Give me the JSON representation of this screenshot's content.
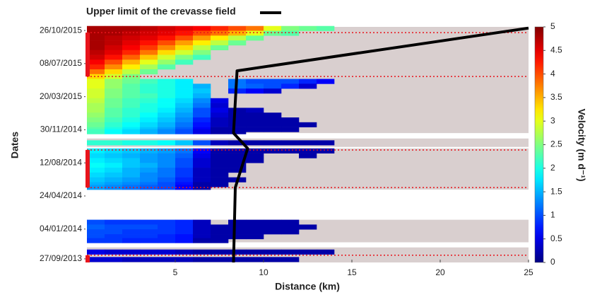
{
  "chart_data": {
    "type": "heatmap",
    "legend_label": "Upper limit of the crevasse field",
    "xlabel": "Distance (km)",
    "ylabel": "Dates",
    "colorbar_label": "Velocity (m d⁻¹)",
    "xlim": [
      0,
      25
    ],
    "xticks": [
      5,
      10,
      15,
      20,
      25
    ],
    "ylim": [
      "2013-09-15",
      "2015-11-07"
    ],
    "yticks": [
      {
        "value": "2015-10-26",
        "label": "26/10/2015"
      },
      {
        "value": "2015-07-08",
        "label": "08/07/2015"
      },
      {
        "value": "2015-03-20",
        "label": "20/03/2015"
      },
      {
        "value": "2014-11-30",
        "label": "30/11/2014"
      },
      {
        "value": "2014-08-12",
        "label": "12/08/2014"
      },
      {
        "value": "2014-04-24",
        "label": "24/04/2014"
      },
      {
        "value": "2014-01-04",
        "label": "04/01/2014"
      },
      {
        "value": "2013-09-27",
        "label": "27/09/2013"
      }
    ],
    "colormap": "jet",
    "clim": [
      0,
      5
    ],
    "cticks": [
      0,
      0.5,
      1,
      1.5,
      2,
      2.5,
      3,
      3.5,
      4,
      4.5,
      5
    ],
    "coverage_color": "#d9cfcf",
    "coverage": [
      [
        "2014-11-19",
        "2015-11-07"
      ],
      [
        "2014-10-04",
        "2014-11-01"
      ],
      [
        "2014-05-15",
        "2014-09-29"
      ],
      [
        "2013-11-21",
        "2014-02-04"
      ],
      [
        "2013-09-15",
        "2013-11-04"
      ]
    ],
    "highlight_color": "#e8141c",
    "highlights": [
      [
        "2015-05-26",
        "2015-10-19"
      ],
      [
        "2014-05-22",
        "2014-09-24"
      ],
      [
        "2013-09-15",
        "2013-10-09"
      ]
    ],
    "x_edges": [
      0,
      1,
      2,
      3,
      4,
      5,
      6,
      7,
      8,
      9,
      10,
      11,
      12,
      13,
      14
    ],
    "rows": [
      {
        "date": "2015-11-02",
        "values": [
          4.8,
          4.8,
          4.8,
          4.7,
          4.6,
          4.5,
          4.4,
          4.2,
          4.0,
          3.8,
          3.0,
          2.5,
          2.4,
          2.3
        ]
      },
      {
        "date": "2015-10-17",
        "values": [
          4.8,
          4.8,
          4.7,
          4.6,
          4.5,
          4.3,
          4.0,
          3.8,
          3.5,
          3.0,
          2.4,
          2.3,
          null,
          null
        ]
      },
      {
        "date": "2015-10-01",
        "values": [
          4.8,
          4.7,
          4.6,
          4.5,
          4.3,
          4.0,
          3.6,
          3.2,
          2.8,
          2.4,
          null,
          null,
          null,
          null
        ]
      },
      {
        "date": "2015-09-15",
        "values": [
          4.8,
          4.7,
          4.5,
          4.3,
          4.0,
          3.6,
          3.2,
          2.8,
          2.4,
          null,
          null,
          null,
          null,
          null
        ]
      },
      {
        "date": "2015-08-30",
        "values": [
          4.8,
          4.6,
          4.4,
          4.1,
          3.7,
          3.3,
          2.8,
          2.4,
          null,
          null,
          null,
          null,
          null,
          null
        ]
      },
      {
        "date": "2015-08-14",
        "values": [
          4.7,
          4.5,
          4.2,
          3.8,
          3.3,
          2.9,
          2.5,
          null,
          null,
          null,
          null,
          null,
          null,
          null
        ]
      },
      {
        "date": "2015-07-29",
        "values": [
          4.6,
          4.3,
          3.9,
          3.4,
          2.9,
          2.5,
          2.2,
          null,
          null,
          null,
          null,
          null,
          null,
          null
        ]
      },
      {
        "date": "2015-07-13",
        "values": [
          4.4,
          4.0,
          3.5,
          3.0,
          2.6,
          2.2,
          null,
          null,
          null,
          null,
          null,
          null,
          null,
          null
        ]
      },
      {
        "date": "2015-06-27",
        "values": [
          4.2,
          3.7,
          3.2,
          2.7,
          2.3,
          null,
          null,
          null,
          null,
          null,
          null,
          null,
          null,
          null
        ]
      },
      {
        "date": "2015-06-11",
        "values": [
          3.8,
          3.3,
          2.8,
          2.4,
          null,
          null,
          null,
          null,
          null,
          null,
          null,
          null,
          null,
          null
        ]
      },
      {
        "date": "2015-05-26",
        "values": [
          3.3,
          2.9,
          2.5,
          null,
          null,
          null,
          null,
          null,
          null,
          null,
          null,
          null,
          null,
          null
        ]
      },
      {
        "date": "2015-05-10",
        "values": [
          3.0,
          2.6,
          2.4,
          2.2,
          2.0,
          1.8,
          null,
          null,
          1.2,
          1.0,
          1.0,
          1.0,
          0.8,
          0.6
        ]
      },
      {
        "date": "2015-04-24",
        "values": [
          3.0,
          2.6,
          2.3,
          2.1,
          2.0,
          1.8,
          1.5,
          null,
          1.2,
          1.1,
          1.0,
          0.8,
          0.4,
          null
        ]
      },
      {
        "date": "2015-04-08",
        "values": [
          2.9,
          2.5,
          2.3,
          2.1,
          2.0,
          1.8,
          1.6,
          null,
          0.8,
          0.6,
          0.4,
          null,
          null,
          null
        ]
      },
      {
        "date": "2015-03-23",
        "values": [
          2.9,
          2.5,
          2.3,
          2.2,
          2.0,
          1.8,
          1.5,
          null,
          null,
          null,
          null,
          null,
          null,
          null
        ]
      },
      {
        "date": "2015-03-07",
        "values": [
          2.8,
          2.4,
          2.2,
          2.1,
          1.9,
          1.7,
          1.3,
          0.5,
          null,
          null,
          null,
          null,
          null,
          null
        ]
      },
      {
        "date": "2015-02-19",
        "values": [
          2.7,
          2.4,
          2.2,
          2.0,
          1.9,
          1.6,
          1.2,
          0.4,
          null,
          null,
          null,
          null,
          null,
          null
        ]
      },
      {
        "date": "2015-02-03",
        "values": [
          2.7,
          2.3,
          2.1,
          2.0,
          1.8,
          1.5,
          1.0,
          0.5,
          0.2,
          0.3,
          null,
          null,
          null,
          null
        ]
      },
      {
        "date": "2015-01-18",
        "values": [
          2.6,
          2.3,
          2.1,
          1.9,
          1.7,
          1.4,
          1.0,
          0.4,
          0.2,
          0.2,
          0.2,
          null,
          null,
          null
        ]
      },
      {
        "date": "2015-01-02",
        "values": [
          2.5,
          2.2,
          2.0,
          1.8,
          1.6,
          1.3,
          0.8,
          0.3,
          0.2,
          0.2,
          0.2,
          0.2,
          null,
          null
        ]
      },
      {
        "date": "2014-12-17",
        "values": [
          2.4,
          2.1,
          1.9,
          1.7,
          1.5,
          1.2,
          0.7,
          0.3,
          0.2,
          0.2,
          0.2,
          0.2,
          0.2,
          null
        ]
      },
      {
        "date": "2014-12-01",
        "values": [
          2.3,
          2.0,
          1.8,
          1.6,
          1.4,
          1.1,
          0.6,
          0.2,
          0.2,
          0.2,
          0.2,
          0.2,
          null,
          null
        ]
      },
      {
        "date": "2014-11-24",
        "values": [
          2.2,
          1.9,
          1.7,
          1.5,
          1.3,
          1.0,
          0.5,
          0.2,
          0.2,
          null,
          null,
          null,
          null,
          null
        ]
      },
      {
        "date": "2014-10-18",
        "values": [
          2.1,
          2.1,
          2.0,
          2.0,
          1.9,
          1.6,
          1.0,
          0.3,
          0.2,
          0.2,
          0.2,
          0.2,
          0.2,
          0.2
        ]
      },
      {
        "date": "2014-09-21",
        "values": [
          1.8,
          1.7,
          1.6,
          1.5,
          1.4,
          1.2,
          0.6,
          0.2,
          0.2,
          0.2,
          0.2,
          0.2,
          0.2,
          0.2
        ]
      },
      {
        "date": "2014-09-05",
        "values": [
          1.7,
          1.6,
          1.5,
          1.4,
          1.3,
          1.1,
          0.5,
          0.2,
          0.2,
          0.2,
          null,
          null,
          0.2,
          null
        ]
      },
      {
        "date": "2014-08-20",
        "values": [
          1.8,
          1.7,
          1.6,
          1.4,
          1.3,
          1.0,
          0.4,
          0.2,
          0.2,
          0.2,
          null,
          null,
          null,
          null
        ]
      },
      {
        "date": "2014-08-04",
        "values": [
          1.9,
          1.8,
          1.6,
          1.5,
          1.3,
          1.0,
          0.4,
          0.2,
          0.2,
          null,
          null,
          null,
          null,
          null
        ]
      },
      {
        "date": "2014-07-19",
        "values": [
          1.8,
          1.7,
          1.5,
          1.4,
          1.2,
          0.9,
          0.3,
          0.2,
          0.2,
          null,
          null,
          null,
          null,
          null
        ]
      },
      {
        "date": "2014-07-03",
        "values": [
          1.7,
          1.6,
          1.5,
          1.3,
          1.2,
          0.9,
          0.3,
          0.2,
          null,
          null,
          null,
          null,
          null,
          null
        ]
      },
      {
        "date": "2014-06-17",
        "values": [
          1.6,
          1.5,
          1.4,
          1.3,
          1.1,
          0.8,
          0.3,
          0.2,
          0.2,
          null,
          null,
          null,
          null,
          null
        ]
      },
      {
        "date": "2014-06-01",
        "values": [
          1.5,
          1.4,
          1.3,
          1.2,
          1.0,
          0.7,
          0.2,
          0.2,
          null,
          null,
          null,
          null,
          null,
          null
        ]
      },
      {
        "date": "2014-05-23",
        "values": [
          1.4,
          1.3,
          1.2,
          1.1,
          1.0,
          0.6,
          0.2,
          null,
          null,
          null,
          null,
          null,
          null,
          null
        ]
      },
      {
        "date": "2014-01-27",
        "values": [
          1.0,
          0.9,
          0.9,
          0.9,
          0.9,
          0.8,
          0.3,
          null,
          0.2,
          0.2,
          0.2,
          0.2,
          null,
          null
        ]
      },
      {
        "date": "2014-01-11",
        "values": [
          1.1,
          1.0,
          1.0,
          1.0,
          0.9,
          0.8,
          0.3,
          0.2,
          0.2,
          0.2,
          0.2,
          0.2,
          0.2,
          null
        ]
      },
      {
        "date": "2013-12-26",
        "values": [
          1.0,
          1.0,
          0.9,
          0.9,
          0.9,
          0.8,
          0.3,
          0.2,
          0.2,
          0.2,
          0.2,
          0.2,
          null,
          null
        ]
      },
      {
        "date": "2013-12-10",
        "values": [
          1.0,
          0.9,
          0.9,
          0.9,
          0.8,
          0.7,
          0.3,
          0.2,
          0.2,
          0.2,
          null,
          null,
          null,
          null
        ]
      },
      {
        "date": "2013-11-27",
        "values": [
          0.9,
          0.9,
          0.8,
          0.8,
          0.8,
          0.7,
          0.2,
          0.2,
          null,
          null,
          null,
          null,
          null,
          null
        ]
      },
      {
        "date": "2013-10-20",
        "values": [
          0.5,
          0.4,
          0.4,
          0.4,
          0.4,
          0.3,
          0.2,
          0.2,
          0.2,
          0.2,
          0.2,
          0.2,
          0.2,
          0.2
        ]
      },
      {
        "date": "2013-09-25",
        "values": [
          0.4,
          0.4,
          0.3,
          0.3,
          0.3,
          0.3,
          0.2,
          0.2,
          0.2,
          0.2,
          0.2,
          0.2,
          null,
          null
        ]
      }
    ],
    "crevasse": {
      "color": "#000000",
      "x": [
        25,
        8.5,
        8.3,
        9.1,
        8.4,
        8.3
      ],
      "dates": [
        "2015-11-03",
        "2015-06-14",
        "2014-11-19",
        "2014-09-29",
        "2014-05-22",
        "2013-09-15"
      ]
    }
  }
}
